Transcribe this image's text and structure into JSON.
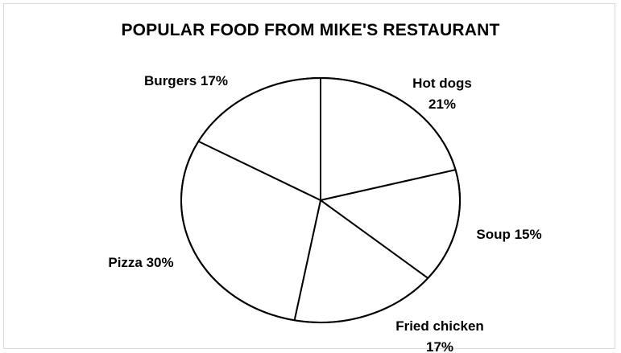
{
  "chart_data": {
    "type": "pie",
    "title": "POPULAR FOOD FROM MIKE'S RESTAURANT",
    "categories": [
      "Hot dogs",
      "Soup",
      "Fried chicken",
      "Pizza",
      "Burgers"
    ],
    "values": [
      21,
      15,
      17,
      30,
      17
    ],
    "labels": [
      [
        "Hot dogs",
        "21%"
      ],
      [
        "Soup 15%"
      ],
      [
        "Fried chicken",
        "17%"
      ],
      [
        "Pizza 30%"
      ],
      [
        "Burgers 17%"
      ]
    ],
    "unit": "%",
    "slice_fill": "#ffffff",
    "slice_stroke": "#000000",
    "legend": "none"
  }
}
